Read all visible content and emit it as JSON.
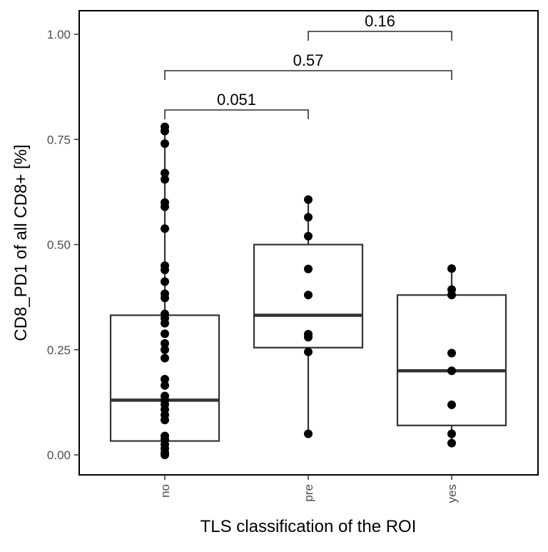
{
  "chart_data": {
    "type": "box",
    "xlabel": "TLS classification of the ROI",
    "ylabel": "CD8_PD1 of all CD8+ [%]",
    "categories": [
      "no",
      "pre",
      "yes"
    ],
    "ylim": [
      -0.045,
      1.06
    ],
    "yticks": [
      0.0,
      0.25,
      0.5,
      0.75,
      1.0
    ],
    "ytick_labels": [
      "0.00",
      "0.25",
      "0.50",
      "0.75",
      "1.00"
    ],
    "grid": false,
    "legend": "none",
    "boxes": [
      {
        "category": "no",
        "min": 0.0,
        "q1": 0.033,
        "median": 0.13,
        "q3": 0.332,
        "max": 0.78
      },
      {
        "category": "pre",
        "min": 0.05,
        "q1": 0.255,
        "median": 0.332,
        "q3": 0.5,
        "max": 0.607
      },
      {
        "category": "yes",
        "min": 0.028,
        "q1": 0.07,
        "median": 0.2,
        "q3": 0.38,
        "max": 0.443
      }
    ],
    "points": {
      "no": [
        0.78,
        0.77,
        0.74,
        0.67,
        0.655,
        0.6,
        0.59,
        0.538,
        0.45,
        0.44,
        0.412,
        0.383,
        0.373,
        0.335,
        0.325,
        0.313,
        0.288,
        0.265,
        0.25,
        0.23,
        0.18,
        0.165,
        0.14,
        0.13,
        0.12,
        0.108,
        0.095,
        0.083,
        0.045,
        0.037,
        0.025,
        0.015,
        0.005,
        0.0
      ],
      "pre": [
        0.607,
        0.565,
        0.52,
        0.442,
        0.38,
        0.287,
        0.28,
        0.245,
        0.05
      ],
      "yes": [
        0.443,
        0.393,
        0.38,
        0.242,
        0.2,
        0.119,
        0.05,
        0.028
      ]
    },
    "comparisons": [
      {
        "groups": [
          "no",
          "pre"
        ],
        "label": "0.051"
      },
      {
        "groups": [
          "no",
          "yes"
        ],
        "label": "0.57"
      },
      {
        "groups": [
          "pre",
          "yes"
        ],
        "label": "0.16"
      }
    ],
    "colors": {
      "box": "#333333",
      "points": "#000000",
      "text": "#000000",
      "tick_text": "#4d4d4d"
    }
  }
}
